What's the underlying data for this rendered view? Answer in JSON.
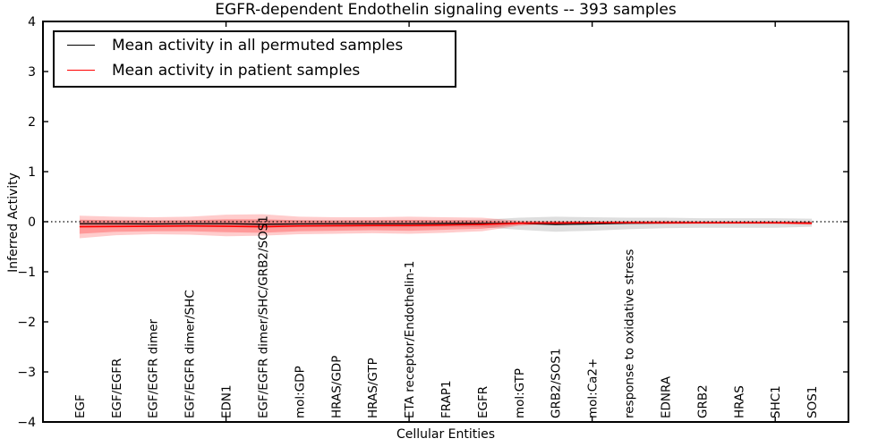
{
  "figure": {
    "title": "EGFR-dependent Endothelin signaling events -- 393 samples",
    "xlabel": "Cellular Entities",
    "ylabel": "Inferred Activity"
  },
  "legend": {
    "entries": [
      {
        "label": "Mean activity in all permuted samples",
        "color": "#000000"
      },
      {
        "label": "Mean activity in patient samples",
        "color": "#ff0000"
      }
    ]
  },
  "chart_data": {
    "type": "line",
    "title": "EGFR-dependent Endothelin signaling events -- 393 samples",
    "xlabel": "Cellular Entities",
    "ylabel": "Inferred Activity",
    "ylim": [
      -4,
      4
    ],
    "yticks": [
      -4,
      -3,
      -2,
      -1,
      0,
      1,
      2,
      3,
      4
    ],
    "xlim": [
      0,
      22
    ],
    "xticks_numeric": [
      5,
      10,
      15,
      20
    ],
    "grid": false,
    "zero_line": 0,
    "legend_position": "upper left",
    "categories": [
      "EGF",
      "EGF/EGFR",
      "EGF/EGFR dimer",
      "EGF/EGFR dimer/SHC",
      "EDN1",
      "EGF/EGFR dimer/SHC/GRB2/SOS1",
      "mol:GDP",
      "HRAS/GDP",
      "HRAS/GTP",
      "ETA receptor/Endothelin-1",
      "FRAP1",
      "EGFR",
      "mol:GTP",
      "GRB2/SOS1",
      "mol:Ca2+",
      "response to oxidative stress",
      "EDNRA",
      "GRB2",
      "HRAS",
      "SHC1",
      "SOS1"
    ],
    "series": [
      {
        "name": "Mean activity in all permuted samples",
        "color": "#000000",
        "width": 1.3,
        "values": [
          -0.04,
          -0.04,
          -0.045,
          -0.04,
          -0.04,
          -0.05,
          -0.045,
          -0.04,
          -0.04,
          -0.04,
          -0.035,
          -0.035,
          -0.03,
          -0.055,
          -0.045,
          -0.03,
          -0.025,
          -0.02,
          -0.02,
          -0.02,
          -0.025
        ]
      },
      {
        "name": "Mean activity in patient samples",
        "color": "#ff0000",
        "width": 1.6,
        "values": [
          -0.1,
          -0.095,
          -0.09,
          -0.085,
          -0.09,
          -0.1,
          -0.085,
          -0.08,
          -0.075,
          -0.075,
          -0.065,
          -0.055,
          -0.03,
          -0.025,
          -0.02,
          -0.02,
          -0.02,
          -0.02,
          -0.02,
          -0.02,
          -0.03
        ]
      }
    ],
    "bands": [
      {
        "name": "permuted-samples-range",
        "color": "rgba(0,0,0,0.13)",
        "upper": [
          0.03,
          0.03,
          0.03,
          0.03,
          0.03,
          0.03,
          0.03,
          0.03,
          0.03,
          0.03,
          0.03,
          0.04,
          0.08,
          0.1,
          0.09,
          0.08,
          0.08,
          0.07,
          0.07,
          0.07,
          0.06
        ],
        "lower": [
          -0.11,
          -0.11,
          -0.11,
          -0.11,
          -0.11,
          -0.12,
          -0.11,
          -0.11,
          -0.11,
          -0.11,
          -0.1,
          -0.11,
          -0.16,
          -0.2,
          -0.18,
          -0.15,
          -0.13,
          -0.12,
          -0.12,
          -0.12,
          -0.1
        ]
      },
      {
        "name": "patient-samples-range-outer",
        "color": "rgba(255,0,0,0.20)",
        "upper": [
          0.12,
          0.1,
          0.09,
          0.1,
          0.14,
          0.15,
          0.1,
          0.09,
          0.09,
          0.1,
          0.09,
          0.08,
          0.02,
          0.015,
          0.01,
          0.015,
          0.02,
          0.01,
          0.01,
          0.01,
          0.005
        ],
        "lower": [
          -0.33,
          -0.27,
          -0.25,
          -0.26,
          -0.29,
          -0.28,
          -0.25,
          -0.24,
          -0.23,
          -0.24,
          -0.22,
          -0.19,
          -0.08,
          -0.05,
          -0.04,
          -0.045,
          -0.05,
          -0.04,
          -0.04,
          -0.045,
          -0.06
        ]
      },
      {
        "name": "patient-samples-range-inner",
        "color": "rgba(255,0,0,0.25)",
        "upper": [
          0.04,
          0.03,
          0.025,
          0.03,
          0.05,
          0.05,
          0.03,
          0.025,
          0.03,
          0.035,
          0.03,
          0.025,
          0.0,
          -0.005,
          0.0,
          0.0,
          0.0,
          0.0,
          0.0,
          0.0,
          -0.01
        ],
        "lower": [
          -0.24,
          -0.2,
          -0.19,
          -0.19,
          -0.21,
          -0.22,
          -0.19,
          -0.18,
          -0.17,
          -0.18,
          -0.16,
          -0.14,
          -0.06,
          -0.045,
          -0.04,
          -0.04,
          -0.04,
          -0.04,
          -0.04,
          -0.04,
          -0.05
        ]
      }
    ]
  }
}
